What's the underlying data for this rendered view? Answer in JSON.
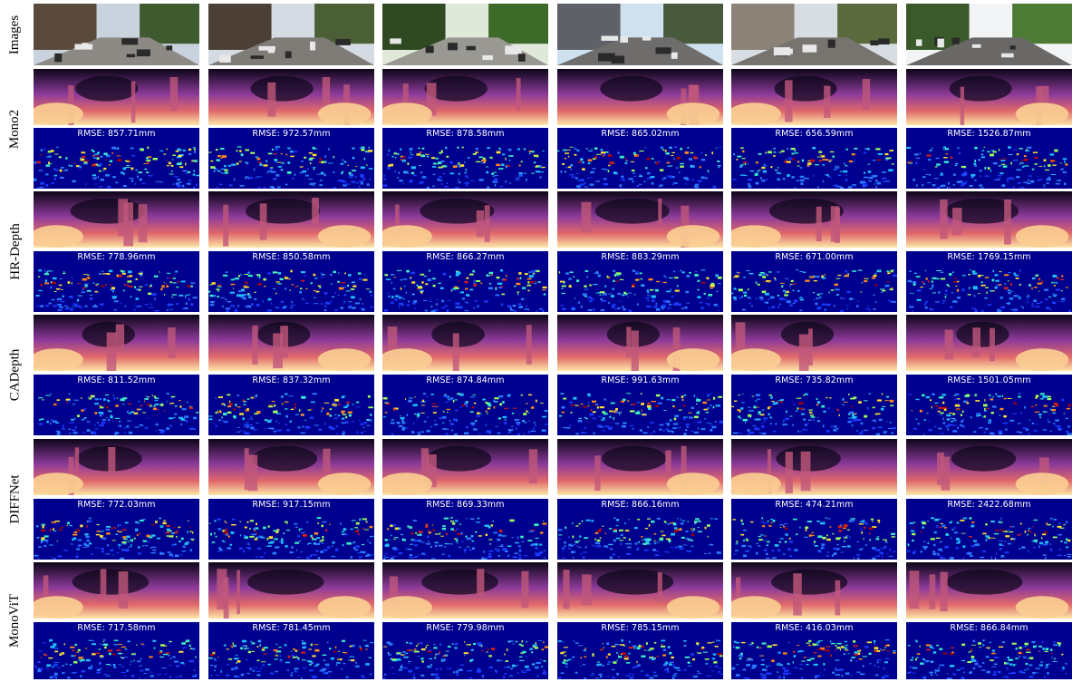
{
  "row_labels": {
    "images": "Images",
    "methods": [
      "Mono2",
      "HR-Depth",
      "CADepth",
      "DIFFNet",
      "MonoViT"
    ]
  },
  "rmse_prefix": "RMSE:",
  "rmse_values": [
    [
      "857.71mm",
      "972.57mm",
      "878.58mm",
      "865.02mm",
      "656.59mm",
      "1526.87mm"
    ],
    [
      "778.96mm",
      "850.58mm",
      "866.27mm",
      "883.29mm",
      "671.00mm",
      "1769.15mm"
    ],
    [
      "811.52mm",
      "837.32mm",
      "874.84mm",
      "991.63mm",
      "735.82mm",
      "1501.05mm"
    ],
    [
      "772.03mm",
      "917.15mm",
      "869.33mm",
      "866.16mm",
      "474.21mm",
      "2422.68mm"
    ],
    [
      "717.58mm",
      "781.45mm",
      "779.98mm",
      "785.15mm",
      "416.03mm",
      "866.84mm"
    ]
  ],
  "colors": {
    "error_background": "#00008f",
    "depth_far": "#0c0618",
    "depth_mid": "#8c3a9a",
    "depth_near": "#fde6a8"
  }
}
